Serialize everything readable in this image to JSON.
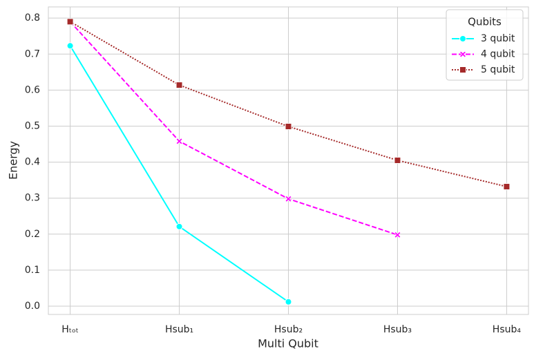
{
  "chart_data": {
    "type": "line",
    "categories": [
      "Hₜₒₜ",
      "Hsub₁",
      "Hsub₂",
      "Hsub₃",
      "Hsub₄"
    ],
    "series": [
      {
        "name": "3 qubit",
        "color": "#00ffff",
        "dash": "solid",
        "marker": "circle",
        "values": [
          0.723,
          0.221,
          0.012,
          null,
          null
        ]
      },
      {
        "name": "4 qubit",
        "color": "#ff00ff",
        "dash": "dashed",
        "marker": "x",
        "values": [
          0.79,
          0.458,
          0.298,
          0.198,
          null
        ]
      },
      {
        "name": "5 qubit",
        "color": "#a52a2a",
        "dash": "dotted",
        "marker": "square",
        "values": [
          0.79,
          0.614,
          0.499,
          0.405,
          0.332
        ]
      }
    ],
    "xlabel": "Multi Qubit",
    "ylabel": "Energy",
    "ylim": [
      -0.023,
      0.831
    ],
    "yticks": [
      {
        "value": 0,
        "label": "0.0"
      },
      0.1,
      0.2,
      0.3,
      0.4,
      0.5,
      0.6,
      0.7,
      0.8
    ],
    "grid": true,
    "legend_title": "Qubits",
    "legend_position": "upper right"
  }
}
